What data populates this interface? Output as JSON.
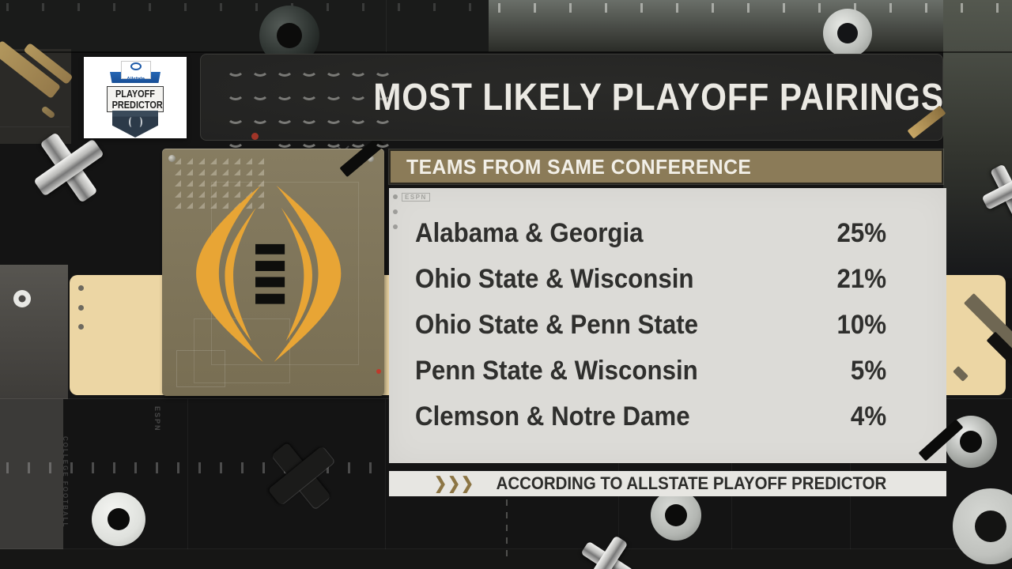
{
  "branding": {
    "allstate": "Allstate",
    "badge_line1": "PLAYOFF",
    "badge_line2": "PREDICTOR"
  },
  "title": "MOST LIKELY PLAYOFF PAIRINGS",
  "panel": {
    "header": "TEAMS FROM SAME CONFERENCE",
    "espn_stencil": "ESPN",
    "rows": [
      {
        "teams": "Alabama & Georgia",
        "pct": "25%"
      },
      {
        "teams": "Ohio State & Wisconsin",
        "pct": "21%"
      },
      {
        "teams": "Ohio State & Penn State",
        "pct": "10%"
      },
      {
        "teams": "Penn State & Wisconsin",
        "pct": "5%"
      },
      {
        "teams": "Clemson & Notre Dame",
        "pct": "4%"
      }
    ]
  },
  "footer": {
    "chevrons": "❯❯❯",
    "text": "ACCORDING TO ALLSTATE PLAYOFF PREDICTOR"
  },
  "background_stencils": {
    "espn_vertical": "ESPN",
    "college_football_vertical": "COLLEGE FOOTBALL"
  },
  "colors": {
    "gold": "#E8A535",
    "khaki_header": "#8B7B58",
    "cfp_panel": "#7F755A",
    "tan_band": "#ECD6A4",
    "card_bg": "#DCDBD7",
    "footer_bg": "#E7E6E2",
    "navy": "#2C3A49",
    "allstate_blue": "#1D5AA8",
    "title_text": "#EBE9E3",
    "dark_text": "#2F2F2D"
  },
  "chart_data": {
    "type": "table",
    "title": "MOST LIKELY PLAYOFF PAIRINGS",
    "subtitle": "TEAMS FROM SAME CONFERENCE",
    "categories": [
      "Alabama & Georgia",
      "Ohio State & Wisconsin",
      "Ohio State & Penn State",
      "Penn State & Wisconsin",
      "Clemson & Notre Dame"
    ],
    "values": [
      25,
      21,
      10,
      5,
      4
    ],
    "unit": "%",
    "source": "ACCORDING TO ALLSTATE PLAYOFF PREDICTOR"
  }
}
